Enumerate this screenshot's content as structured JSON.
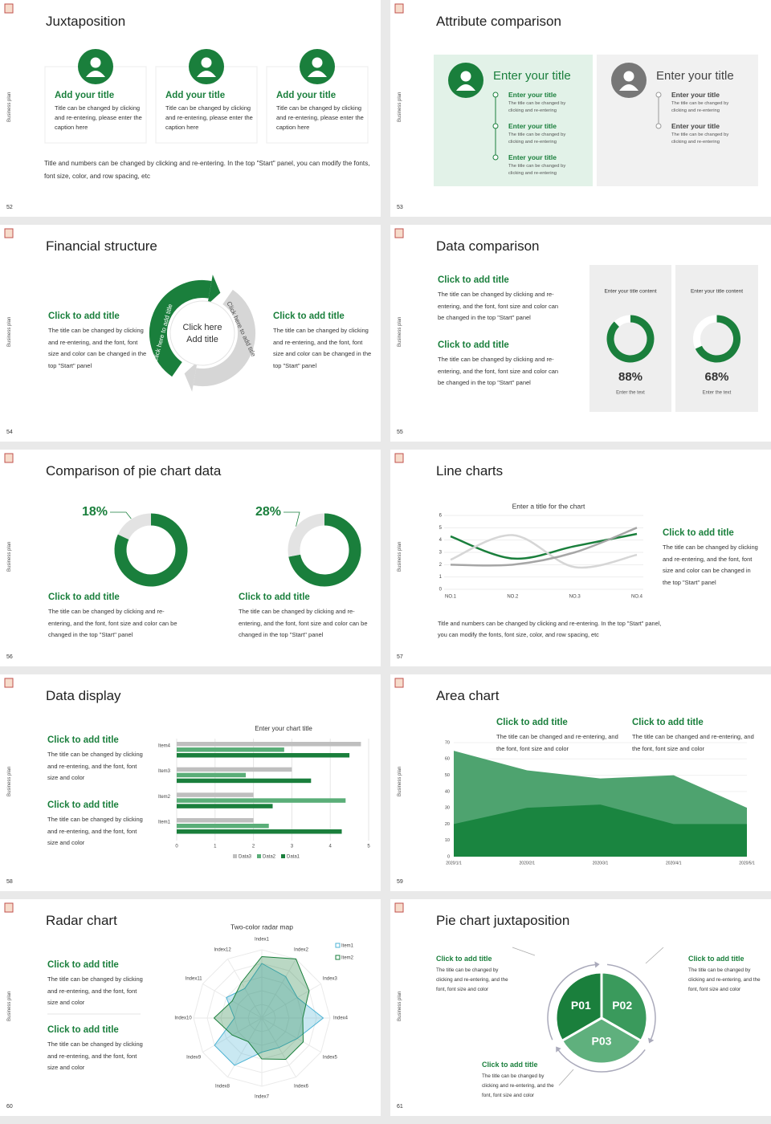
{
  "slides": [
    {
      "number": "52",
      "side": "Business plan",
      "title": "Juxtaposition",
      "cards": [
        {
          "title": "Add your title",
          "text": "Title can be changed by clicking and re-entering, please enter the caption here"
        },
        {
          "title": "Add your title",
          "text": "Title can be changed by clicking and re-entering, please enter the caption here"
        },
        {
          "title": "Add your title",
          "text": "Title can be changed by clicking and re-entering, please enter the caption here"
        }
      ],
      "footer": "Title and numbers can be changed by clicking and re-entering. In the top \"Start\" panel, you can modify the fonts, font size, color, and row spacing, etc"
    },
    {
      "number": "53",
      "side": "Business plan",
      "title": "Attribute comparison",
      "panels": [
        {
          "title": "Enter your title",
          "items": [
            {
              "title": "Enter your title",
              "text": "The title can be changed by clicking and re-entering"
            },
            {
              "title": "Enter your title",
              "text": "The title can be changed by clicking and re-entering"
            },
            {
              "title": "Enter your title",
              "text": "The title can be changed by clicking and re-entering"
            }
          ]
        },
        {
          "title": "Enter your title",
          "items": [
            {
              "title": "Enter your title",
              "text": "The title can be changed by clicking and re-entering"
            },
            {
              "title": "Enter your title",
              "text": "The title can be changed by clicking and re-entering"
            }
          ]
        }
      ]
    },
    {
      "number": "54",
      "side": "Business plan",
      "title": "Financial structure",
      "blocks": [
        {
          "title": "Click to add title",
          "text": "The title can be changed by clicking and re-entering, and the font, font size and color can be changed in the top \"Start\" panel"
        },
        {
          "title": "Click to add title",
          "text": "The title can be changed by clicking and re-entering, and the font, font size and color can be changed in the top \"Start\" panel"
        }
      ],
      "center": [
        "Click here",
        "Add title"
      ],
      "arrows": [
        "Click here to add title",
        "Click here to add title"
      ]
    },
    {
      "number": "55",
      "side": "Business plan",
      "title": "Data comparison",
      "blocks": [
        {
          "title": "Click to add title",
          "text": "The title can be changed by clicking and re-entering, and the font, font size and color can be changed in the top \"Start\" panel"
        },
        {
          "title": "Click to add title",
          "text": "The title can be changed by clicking and re-entering, and the font, font size and color can be changed in the top \"Start\" panel"
        }
      ],
      "chart": {
        "type": "donut",
        "headers": [
          "Enter your title content",
          "Enter your title content"
        ],
        "values": [
          88,
          68
        ],
        "value_labels": [
          "88%",
          "68%"
        ],
        "captions": [
          "Enter the text",
          "Enter the text"
        ],
        "color": "#1a7f3c"
      }
    },
    {
      "number": "56",
      "side": "Business plan",
      "title": "Comparison of pie chart data",
      "chart": {
        "type": "donut",
        "values": [
          18,
          28
        ],
        "value_labels": [
          "18%",
          "28%"
        ],
        "color": "#e3e3e3"
      },
      "blocks": [
        {
          "title": "Click to add title",
          "text": "The title can be changed by clicking and re-entering, and the font, font size and color can be changed in the top \"Start\" panel"
        },
        {
          "title": "Click to add title",
          "text": "The title can be changed by clicking and re-entering, and the font, font size and color can be changed in the top \"Start\" panel"
        }
      ]
    },
    {
      "number": "57",
      "side": "Business plan",
      "title": "Line charts",
      "chart": {
        "type": "line",
        "title": "Enter a title for the chart",
        "categories": [
          "NO.1",
          "NO.2",
          "NO.3",
          "NO.4"
        ],
        "ylim": [
          0,
          6
        ],
        "yticks": [
          0,
          1,
          2,
          3,
          4,
          5,
          6
        ],
        "grid": true,
        "series": [
          {
            "color": "#1a7f3c",
            "values": [
              4.3,
              2.5,
              3.5,
              4.5
            ]
          },
          {
            "color": "#d6d6d6",
            "values": [
              2.4,
              4.4,
              1.8,
              2.8
            ]
          },
          {
            "color": "#a6a6a6",
            "values": [
              2,
              2,
              3,
              5
            ]
          }
        ]
      },
      "blocks": [
        {
          "title": "Click to add title",
          "text": "The title can be changed by clicking and re-entering, and the font, font size and color can be changed in the top \"Start\" panel"
        }
      ],
      "footer": "Title and numbers can be changed by clicking and re-entering. In the top \"Start\" panel, you can modify the fonts, font size, color, and row spacing, etc"
    },
    {
      "number": "58",
      "side": "Business plan",
      "title": "Data display",
      "blocks": [
        {
          "title": "Click to add title",
          "text": "The title can be changed by clicking and re-entering, and the font, font size and color"
        },
        {
          "title": "Click to add title",
          "text": "The title can be changed by clicking and re-entering, and the font, font size and color"
        }
      ],
      "chart": {
        "type": "barh",
        "title": "Enter your chart title",
        "categories": [
          "Item1",
          "Item2",
          "Item3",
          "Item4"
        ],
        "xlim": [
          0,
          5
        ],
        "xticks": [
          0,
          1,
          2,
          3,
          4,
          5
        ],
        "grid": true,
        "series": [
          {
            "name": "Data3",
            "color": "#bfbfbf",
            "values": [
              2,
              2,
              3,
              4.8
            ]
          },
          {
            "name": "Data2",
            "color": "#5aae78",
            "values": [
              2.4,
              4.4,
              1.8,
              2.8
            ]
          },
          {
            "name": "Data1",
            "color": "#1a7f3c",
            "values": [
              4.3,
              2.5,
              3.5,
              4.5
            ]
          }
        ]
      }
    },
    {
      "number": "59",
      "side": "Business plan",
      "title": "Area chart",
      "blocks": [
        {
          "title": "Click to add title",
          "text": "The title can be changed and re-entering, and the font, font size and color"
        },
        {
          "title": "Click to add title",
          "text": "The title can be changed and re-entering, and the font, font size and color"
        }
      ],
      "chart": {
        "type": "area",
        "x": [
          "2020/1/1",
          "2020/2/1",
          "2020/3/1",
          "2020/4/1",
          "2020/5/1"
        ],
        "ylim": [
          0,
          70
        ],
        "yticks": [
          0,
          10,
          20,
          30,
          40,
          50,
          60,
          70
        ],
        "series": [
          {
            "color": "#4ea36f",
            "values": [
              65,
              53,
              48,
              50,
              30
            ]
          },
          {
            "color": "#1a8540",
            "values": [
              20,
              30,
              32,
              20,
              20
            ]
          }
        ]
      }
    },
    {
      "number": "60",
      "side": "Business plan",
      "title": "Radar chart",
      "blocks": [
        {
          "title": "Click to add title",
          "text": "The title can be changed by clicking and re-entering, and the font, font size and color"
        },
        {
          "title": "Click to add title",
          "text": "The title can be changed by clicking and re-entering, and the font, font size and color"
        }
      ],
      "chart": {
        "type": "radar",
        "title": "Two-color radar map",
        "categories": [
          "Index1",
          "Index2",
          "Index3",
          "Index4",
          "Index5",
          "Index6",
          "Index7",
          "Index8",
          "Index9",
          "Index10",
          "Index11",
          "Index12"
        ],
        "rlim": [
          0,
          10
        ],
        "series": [
          {
            "name": "Item1",
            "color": "#4cb3d4",
            "values": [
              8,
              7,
              6,
              9,
              6,
              5,
              5,
              8,
              8,
              4,
              6,
              5
            ]
          },
          {
            "name": "Item2",
            "color": "#1a7f3c",
            "values": [
              9,
              10,
              8,
              6,
              7,
              7,
              6,
              4,
              5,
              7,
              5,
              6
            ]
          }
        ]
      }
    },
    {
      "number": "61",
      "side": "Business plan",
      "title": "Pie chart juxtaposition",
      "segments": [
        "P01",
        "P02",
        "P03"
      ],
      "blocks": [
        {
          "title": "Click to add title",
          "text": "The title can be changed by clicking and re-entering, and the font, font size and color"
        },
        {
          "title": "Click to add title",
          "text": "The title can be changed by clicking and re-entering, and the font, font size and color"
        },
        {
          "title": "Click to add title",
          "text": "The title can be changed by clicking and re-entering, and the font, font size and color"
        }
      ]
    }
  ]
}
